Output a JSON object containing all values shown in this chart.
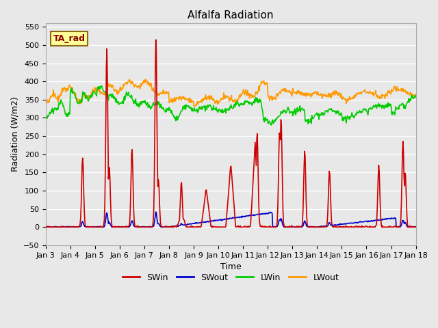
{
  "title": "Alfalfa Radiation",
  "xlabel": "Time",
  "ylabel": "Radiation (W/m2)",
  "ylim": [
    -50,
    560
  ],
  "background_color": "#e8e8e8",
  "plot_bg_color": "#e8e8e8",
  "grid_color": "white",
  "legend_label": "TA_rad",
  "legend_box_color": "#ffff99",
  "legend_box_edge": "#8B6914",
  "legend_text_color": "#8B0000",
  "series": {
    "SWin": {
      "color": "#cc0000",
      "lw": 1.2
    },
    "SWout": {
      "color": "#0000cc",
      "lw": 1.2
    },
    "LWin": {
      "color": "#00cc00",
      "lw": 1.2
    },
    "LWout": {
      "color": "#ff9900",
      "lw": 1.2
    }
  },
  "xticklabels": [
    "Jan 3",
    "Jan 4",
    "Jan 5",
    "Jan 6",
    "Jan 7",
    "Jan 8",
    "Jan 9",
    "Jan 10",
    "Jan 11",
    "Jan 12",
    "Jan 13",
    "Jan 14",
    "Jan 15",
    "Jan 16",
    "Jan 17",
    "Jan 18"
  ],
  "title_fontsize": 11,
  "axis_fontsize": 9,
  "tick_fontsize": 8
}
